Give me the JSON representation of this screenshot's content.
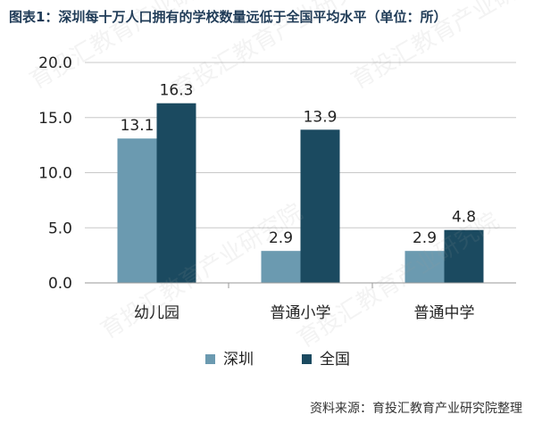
{
  "title": "图表1：深圳每十万人口拥有的学校数量远低于全国平均水平（单位：所）",
  "source": "资料来源：育投汇教育产业研究院整理",
  "watermark_text": "育投汇教育产业研究院",
  "chart_data": {
    "type": "bar",
    "categories": [
      "幼儿园",
      "普通小学",
      "普通中学"
    ],
    "series": [
      {
        "name": "深圳",
        "values": [
          13.1,
          2.9,
          2.9
        ],
        "labels": [
          "13.1",
          "2.9",
          "2.9"
        ],
        "color": "#6b9ab0"
      },
      {
        "name": "全国",
        "values": [
          16.3,
          13.9,
          4.8
        ],
        "labels": [
          "16.3",
          "13.9",
          "4.8"
        ],
        "color": "#1b4a60"
      }
    ],
    "ylim": [
      0,
      20
    ],
    "yticks": [
      "0.0",
      "5.0",
      "10.0",
      "15.0",
      "20.0"
    ],
    "grid": true,
    "legend_position": "bottom"
  },
  "colors": {
    "title": "#1f3b57",
    "grid": "#c8c8c8",
    "axis": "#9a9a9a"
  }
}
